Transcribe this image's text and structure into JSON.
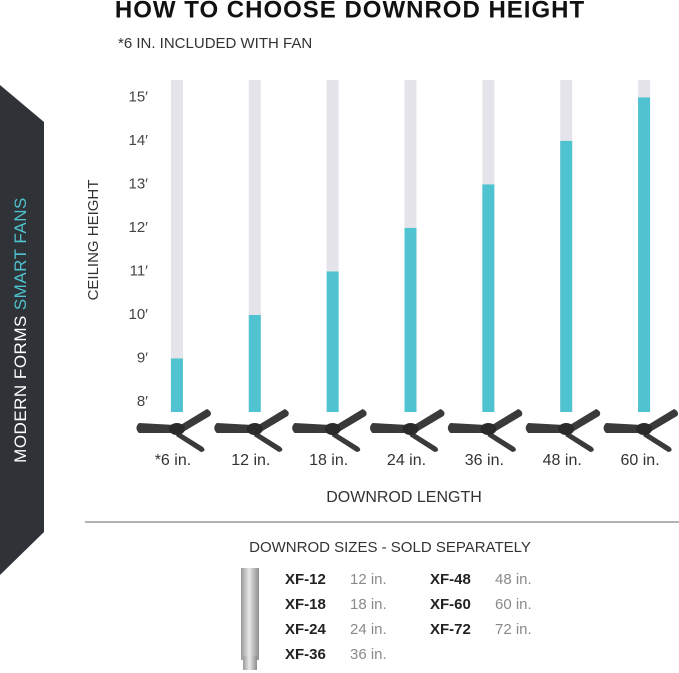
{
  "chart_data": {
    "type": "bar",
    "title": "HOW TO CHOOSE DOWNROD HEIGHT",
    "subtitle": "*6 IN. INCLUDED WITH FAN",
    "y_label": "CEILING HEIGHT",
    "x_label": "DOWNROD LENGTH",
    "categories": [
      "*6 in.",
      "12 in.",
      "18 in.",
      "24 in.",
      "36 in.",
      "48 in.",
      "60 in."
    ],
    "values": [
      9,
      10,
      11,
      12,
      13,
      14,
      15
    ],
    "color": "#4fc3cf",
    "track_color": "#e4e4ea",
    "ylim": [
      7.77,
      15.4
    ],
    "yticks": [
      {
        "value": 8,
        "label": "8′"
      },
      {
        "value": 9,
        "label": "9′"
      },
      {
        "value": 10,
        "label": "10′"
      },
      {
        "value": 11,
        "label": "11′"
      },
      {
        "value": 12,
        "label": "12′"
      },
      {
        "value": 13,
        "label": "13′"
      },
      {
        "value": 14,
        "label": "14′"
      },
      {
        "value": 15,
        "label": "15′"
      }
    ],
    "grid": false
  },
  "sidebar": {
    "brand": "MODERN FORMS",
    "product": "SMART FANS"
  },
  "sizes": {
    "title": "DOWNROD SIZES - SOLD SEPARATELY",
    "items": [
      {
        "code": "XF-12",
        "length": "12 in."
      },
      {
        "code": "XF-18",
        "length": "18 in."
      },
      {
        "code": "XF-24",
        "length": "24 in."
      },
      {
        "code": "XF-36",
        "length": "36 in."
      },
      {
        "code": "XF-48",
        "length": "48 in."
      },
      {
        "code": "XF-60",
        "length": "60 in."
      },
      {
        "code": "XF-72",
        "length": "72 in."
      }
    ]
  }
}
